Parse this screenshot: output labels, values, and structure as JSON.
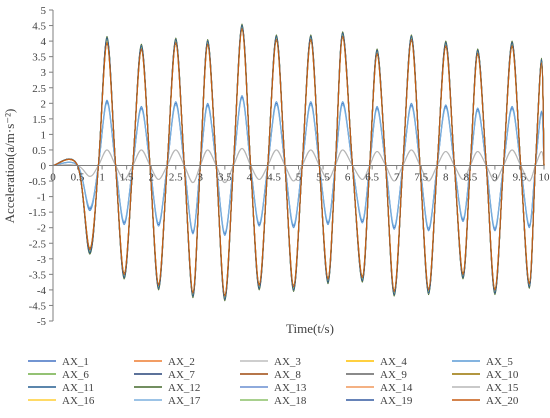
{
  "chart_data": {
    "type": "line",
    "title": "",
    "xlabel": "Time(t/s)",
    "ylabel": "Acceleration(a/m·s⁻²)",
    "xlim": [
      0,
      10
    ],
    "ylim": [
      -5,
      5
    ],
    "x_ticks": [
      0,
      0.5,
      1,
      1.5,
      2,
      2.5,
      3,
      3.5,
      4,
      4.5,
      5,
      5.5,
      6,
      6.5,
      7,
      7.5,
      8,
      8.5,
      9,
      9.5,
      10
    ],
    "y_ticks": [
      -5,
      -4.5,
      -4,
      -3.5,
      -3,
      -2.5,
      -2,
      -1.5,
      -1,
      -0.5,
      0,
      0.5,
      1,
      1.5,
      2,
      2.5,
      3,
      3.5,
      4,
      4.5,
      5
    ],
    "grid": false,
    "legend_position": "bottom",
    "signal": {
      "start": 0.5,
      "end": 10,
      "peak_times": [
        1.1,
        1.8,
        2.5,
        3.15,
        3.85,
        4.55,
        5.25,
        5.9,
        6.6,
        7.3,
        8.0,
        8.65,
        9.35,
        9.95
      ],
      "trough_times": [
        0.75,
        1.45,
        2.15,
        2.85,
        3.5,
        4.2,
        4.9,
        5.6,
        6.3,
        6.95,
        7.65,
        8.35,
        9.0,
        9.7
      ]
    },
    "series": [
      {
        "name": "AX_1",
        "color": "#4472C4",
        "peaks": [
          2.05,
          1.85,
          2.0,
          1.95,
          2.2,
          2.0,
          2.0,
          2.0,
          1.85,
          1.95,
          1.9,
          1.8,
          1.85,
          1.7
        ],
        "troughs": [
          -1.4,
          -1.85,
          -1.9,
          -2.15,
          -2.2,
          -1.9,
          -1.95,
          -1.85,
          -1.8,
          -2.0,
          -2.05,
          -1.75,
          -2.05,
          -1.95
        ]
      },
      {
        "name": "AX_2",
        "color": "#ED7D31",
        "peaks": [
          4.0,
          3.8,
          4.0,
          3.95,
          4.45,
          4.1,
          4.1,
          4.2,
          3.65,
          4.1,
          3.9,
          3.65,
          3.9,
          3.35
        ],
        "troughs": [
          -2.75,
          -3.55,
          -3.9,
          -4.15,
          -4.25,
          -3.9,
          -3.95,
          -3.7,
          -3.65,
          -4.1,
          -4.05,
          -3.55,
          -4.05,
          -3.85
        ]
      },
      {
        "name": "AX_3",
        "color": "#BDBDBD",
        "peaks": [
          0.5,
          0.5,
          0.5,
          0.5,
          0.55,
          0.5,
          0.5,
          0.5,
          0.45,
          0.5,
          0.45,
          0.45,
          0.5,
          0.45
        ],
        "troughs": [
          -0.35,
          -0.45,
          -0.45,
          -0.55,
          -0.55,
          -0.45,
          -0.5,
          -0.45,
          -0.45,
          -0.5,
          -0.5,
          -0.45,
          -0.5,
          -0.5
        ]
      },
      {
        "name": "AX_4",
        "color": "#FFC000",
        "peaks": [
          4.0,
          3.75,
          3.95,
          3.9,
          4.4,
          4.05,
          4.05,
          4.15,
          3.6,
          4.05,
          3.85,
          3.6,
          3.85,
          3.3
        ],
        "troughs": [
          -2.7,
          -3.5,
          -3.85,
          -4.1,
          -4.2,
          -3.85,
          -3.9,
          -3.65,
          -3.6,
          -4.05,
          -4.0,
          -3.5,
          -4.0,
          -3.8
        ]
      },
      {
        "name": "AX_5",
        "color": "#5B9BD5",
        "peaks": [
          2.1,
          1.9,
          2.05,
          2.0,
          2.25,
          2.05,
          2.05,
          2.05,
          1.9,
          2.0,
          1.95,
          1.85,
          1.9,
          1.75
        ],
        "troughs": [
          -1.45,
          -1.9,
          -1.95,
          -2.2,
          -2.25,
          -1.95,
          -2.0,
          -1.9,
          -1.85,
          -2.05,
          -2.1,
          -1.8,
          -2.1,
          -2.0
        ]
      },
      {
        "name": "AX_6",
        "color": "#70AD47",
        "peaks": [
          4.05,
          3.8,
          4.0,
          3.95,
          4.45,
          4.1,
          4.1,
          4.2,
          3.65,
          4.1,
          3.9,
          3.65,
          3.9,
          3.35
        ],
        "troughs": [
          -2.75,
          -3.55,
          -3.9,
          -4.15,
          -4.25,
          -3.9,
          -3.95,
          -3.7,
          -3.65,
          -4.1,
          -4.05,
          -3.55,
          -4.05,
          -3.85
        ]
      },
      {
        "name": "AX_7",
        "color": "#264478",
        "peaks": [
          4.1,
          3.85,
          4.05,
          4.0,
          4.5,
          4.15,
          4.15,
          4.25,
          3.7,
          4.15,
          3.95,
          3.7,
          3.95,
          3.4
        ],
        "troughs": [
          -2.8,
          -3.6,
          -3.95,
          -4.2,
          -4.3,
          -3.95,
          -4.0,
          -3.75,
          -3.7,
          -4.15,
          -4.1,
          -3.6,
          -4.1,
          -3.9
        ]
      },
      {
        "name": "AX_8",
        "color": "#9E480E",
        "peaks": [
          3.95,
          3.75,
          3.95,
          3.9,
          4.4,
          4.05,
          4.05,
          4.15,
          3.6,
          4.05,
          3.85,
          3.6,
          3.85,
          3.3
        ],
        "troughs": [
          -2.7,
          -3.5,
          -3.85,
          -4.1,
          -4.2,
          -3.85,
          -3.9,
          -3.65,
          -3.6,
          -4.05,
          -4.0,
          -3.5,
          -4.0,
          -3.8
        ]
      },
      {
        "name": "AX_9",
        "color": "#636363",
        "peaks": [
          4.0,
          3.8,
          4.0,
          3.95,
          4.45,
          4.1,
          4.1,
          4.2,
          3.65,
          4.1,
          3.9,
          3.65,
          3.9,
          3.35
        ],
        "troughs": [
          -2.75,
          -3.55,
          -3.9,
          -4.15,
          -4.25,
          -3.9,
          -3.95,
          -3.7,
          -3.65,
          -4.1,
          -4.05,
          -3.55,
          -4.05,
          -3.85
        ]
      },
      {
        "name": "AX_10",
        "color": "#997300",
        "peaks": [
          3.9,
          3.7,
          3.9,
          3.85,
          4.35,
          4.0,
          4.0,
          4.1,
          3.55,
          4.0,
          3.8,
          3.55,
          3.8,
          3.25
        ],
        "troughs": [
          -2.65,
          -3.45,
          -3.8,
          -4.05,
          -4.15,
          -3.8,
          -3.85,
          -3.6,
          -3.55,
          -4.0,
          -3.95,
          -3.45,
          -3.95,
          -3.75
        ]
      },
      {
        "name": "AX_11",
        "color": "#255E91",
        "peaks": [
          4.1,
          3.85,
          4.05,
          4.0,
          4.5,
          4.15,
          4.15,
          4.25,
          3.7,
          4.15,
          3.95,
          3.7,
          3.95,
          3.4
        ],
        "troughs": [
          -2.8,
          -3.6,
          -3.95,
          -4.2,
          -4.3,
          -3.95,
          -4.0,
          -3.75,
          -3.7,
          -4.15,
          -4.1,
          -3.6,
          -4.1,
          -3.9
        ]
      },
      {
        "name": "AX_12",
        "color": "#43682B",
        "peaks": [
          4.15,
          3.9,
          4.1,
          4.05,
          4.55,
          4.2,
          4.2,
          4.3,
          3.75,
          4.2,
          4.0,
          3.75,
          4.0,
          3.45
        ],
        "troughs": [
          -2.85,
          -3.65,
          -4.0,
          -4.25,
          -4.35,
          -4.0,
          -4.05,
          -3.8,
          -3.75,
          -4.2,
          -4.15,
          -3.65,
          -4.15,
          -3.95
        ]
      },
      {
        "name": "AX_13",
        "color": "#698ED0",
        "peaks": [
          4.0,
          3.75,
          3.95,
          3.9,
          4.4,
          4.05,
          4.05,
          4.15,
          3.6,
          4.05,
          3.85,
          3.6,
          3.85,
          3.3
        ],
        "troughs": [
          -2.7,
          -3.5,
          -3.85,
          -4.1,
          -4.2,
          -3.85,
          -3.9,
          -3.65,
          -3.6,
          -4.05,
          -4.0,
          -3.5,
          -4.0,
          -3.8
        ]
      },
      {
        "name": "AX_14",
        "color": "#F1975A",
        "peaks": [
          3.95,
          3.75,
          3.95,
          3.9,
          4.4,
          4.05,
          4.05,
          4.15,
          3.6,
          4.05,
          3.85,
          3.6,
          3.85,
          3.3
        ],
        "troughs": [
          -2.7,
          -3.5,
          -3.85,
          -4.1,
          -4.2,
          -3.85,
          -3.9,
          -3.65,
          -3.6,
          -4.05,
          -4.0,
          -3.5,
          -4.0,
          -3.8
        ]
      },
      {
        "name": "AX_15",
        "color": "#B7B7B7",
        "peaks": [
          0.5,
          0.5,
          0.5,
          0.5,
          0.55,
          0.5,
          0.5,
          0.5,
          0.45,
          0.5,
          0.45,
          0.45,
          0.5,
          0.45
        ],
        "troughs": [
          -0.35,
          -0.45,
          -0.45,
          -0.55,
          -0.55,
          -0.45,
          -0.5,
          -0.45,
          -0.45,
          -0.5,
          -0.5,
          -0.45,
          -0.5,
          -0.5
        ]
      },
      {
        "name": "AX_16",
        "color": "#FFCD33",
        "peaks": [
          4.0,
          3.8,
          4.0,
          3.95,
          4.45,
          4.1,
          4.1,
          4.2,
          3.65,
          4.1,
          3.9,
          3.65,
          3.9,
          3.35
        ],
        "troughs": [
          -2.75,
          -3.55,
          -3.9,
          -4.15,
          -4.25,
          -3.9,
          -3.95,
          -3.7,
          -3.65,
          -4.1,
          -4.05,
          -3.55,
          -4.05,
          -3.85
        ]
      },
      {
        "name": "AX_17",
        "color": "#7CAFDD",
        "peaks": [
          2.0,
          1.8,
          1.95,
          1.9,
          2.15,
          1.95,
          1.95,
          1.95,
          1.8,
          1.9,
          1.85,
          1.75,
          1.8,
          1.65
        ],
        "troughs": [
          -1.35,
          -1.8,
          -1.85,
          -2.1,
          -2.15,
          -1.85,
          -1.9,
          -1.8,
          -1.75,
          -1.95,
          -2.0,
          -1.7,
          -2.0,
          -1.9
        ]
      },
      {
        "name": "AX_18",
        "color": "#8CC168",
        "peaks": [
          4.05,
          3.8,
          4.0,
          3.95,
          4.45,
          4.1,
          4.1,
          4.2,
          3.65,
          4.1,
          3.9,
          3.65,
          3.9,
          3.35
        ],
        "troughs": [
          -2.75,
          -3.55,
          -3.9,
          -4.15,
          -4.25,
          -3.9,
          -3.95,
          -3.7,
          -3.65,
          -4.1,
          -4.05,
          -3.55,
          -4.05,
          -3.85
        ]
      },
      {
        "name": "AX_19",
        "color": "#335AA1",
        "peaks": [
          4.1,
          3.85,
          4.05,
          4.0,
          4.5,
          4.15,
          4.15,
          4.25,
          3.7,
          4.15,
          3.95,
          3.7,
          3.95,
          3.4
        ],
        "troughs": [
          -2.8,
          -3.6,
          -3.95,
          -4.2,
          -4.3,
          -3.95,
          -4.0,
          -3.75,
          -3.7,
          -4.15,
          -4.1,
          -3.6,
          -4.1,
          -3.9
        ]
      },
      {
        "name": "AX_20",
        "color": "#C55A11",
        "peaks": [
          3.95,
          3.75,
          3.95,
          3.9,
          4.4,
          4.05,
          4.05,
          4.15,
          3.6,
          4.05,
          3.85,
          3.6,
          3.85,
          3.3
        ],
        "troughs": [
          -2.7,
          -3.5,
          -3.85,
          -4.1,
          -4.2,
          -3.85,
          -3.9,
          -3.65,
          -3.6,
          -4.05,
          -4.0,
          -3.5,
          -4.0,
          -3.8
        ]
      }
    ]
  }
}
